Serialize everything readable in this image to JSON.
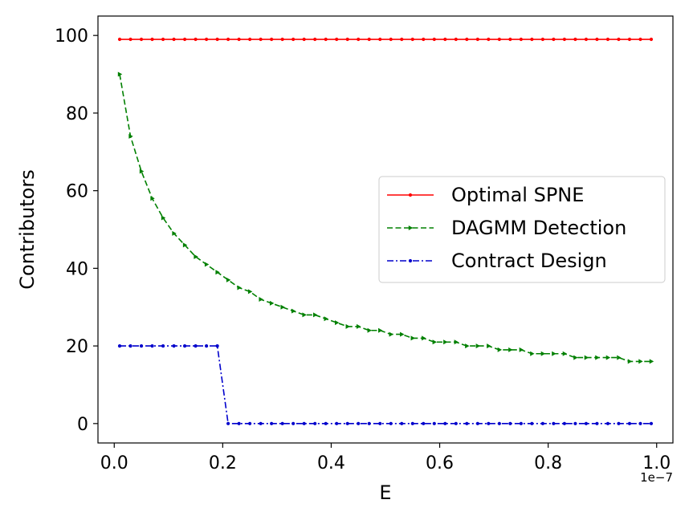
{
  "chart_data": {
    "type": "line",
    "title": "",
    "xlabel": "E",
    "ylabel": "Contributors",
    "x_offset_label": "1e−7",
    "xlim": [
      -0.03,
      1.03
    ],
    "ylim": [
      -5,
      105
    ],
    "xticks": [
      0.0,
      0.2,
      0.4,
      0.6,
      0.8,
      1.0
    ],
    "xtick_labels": [
      "0.0",
      "0.2",
      "0.4",
      "0.6",
      "0.8",
      "1.0"
    ],
    "yticks": [
      0,
      20,
      40,
      60,
      80,
      100
    ],
    "ytick_labels": [
      "0",
      "20",
      "40",
      "60",
      "80",
      "100"
    ],
    "x_unit_scale": "1e-7",
    "grid": false,
    "legend_position": "center-right",
    "x": [
      0.01,
      0.03,
      0.05,
      0.07,
      0.09,
      0.11,
      0.13,
      0.15,
      0.17,
      0.19,
      0.21,
      0.23,
      0.25,
      0.27,
      0.29,
      0.31,
      0.33,
      0.35,
      0.37,
      0.39,
      0.41,
      0.43,
      0.45,
      0.47,
      0.49,
      0.51,
      0.53,
      0.55,
      0.57,
      0.59,
      0.61,
      0.63,
      0.65,
      0.67,
      0.69,
      0.71,
      0.73,
      0.75,
      0.77,
      0.79,
      0.81,
      0.83,
      0.85,
      0.87,
      0.89,
      0.91,
      0.93,
      0.95,
      0.97,
      0.99
    ],
    "series": [
      {
        "name": "Optimal SPNE",
        "color": "#ff0000",
        "style": "solid",
        "marker": "circle",
        "values": [
          99,
          99,
          99,
          99,
          99,
          99,
          99,
          99,
          99,
          99,
          99,
          99,
          99,
          99,
          99,
          99,
          99,
          99,
          99,
          99,
          99,
          99,
          99,
          99,
          99,
          99,
          99,
          99,
          99,
          99,
          99,
          99,
          99,
          99,
          99,
          99,
          99,
          99,
          99,
          99,
          99,
          99,
          99,
          99,
          99,
          99,
          99,
          99,
          99,
          99
        ]
      },
      {
        "name": "DAGMM Detection",
        "color": "#008000",
        "style": "dashed",
        "marker": "triangle-right",
        "values": [
          90,
          74,
          65,
          58,
          53,
          49,
          46,
          43,
          41,
          39,
          37,
          35,
          34,
          32,
          31,
          30,
          29,
          28,
          28,
          27,
          26,
          25,
          25,
          24,
          24,
          23,
          23,
          22,
          22,
          21,
          21,
          21,
          20,
          20,
          20,
          19,
          19,
          19,
          18,
          18,
          18,
          18,
          17,
          17,
          17,
          17,
          17,
          16,
          16,
          16
        ]
      },
      {
        "name": "Contract Design",
        "color": "#0000cc",
        "style": "dashdot",
        "marker": "circle",
        "values": [
          20,
          20,
          20,
          20,
          20,
          20,
          20,
          20,
          20,
          20,
          0,
          0,
          0,
          0,
          0,
          0,
          0,
          0,
          0,
          0,
          0,
          0,
          0,
          0,
          0,
          0,
          0,
          0,
          0,
          0,
          0,
          0,
          0,
          0,
          0,
          0,
          0,
          0,
          0,
          0,
          0,
          0,
          0,
          0,
          0,
          0,
          0,
          0,
          0,
          0
        ]
      }
    ]
  }
}
